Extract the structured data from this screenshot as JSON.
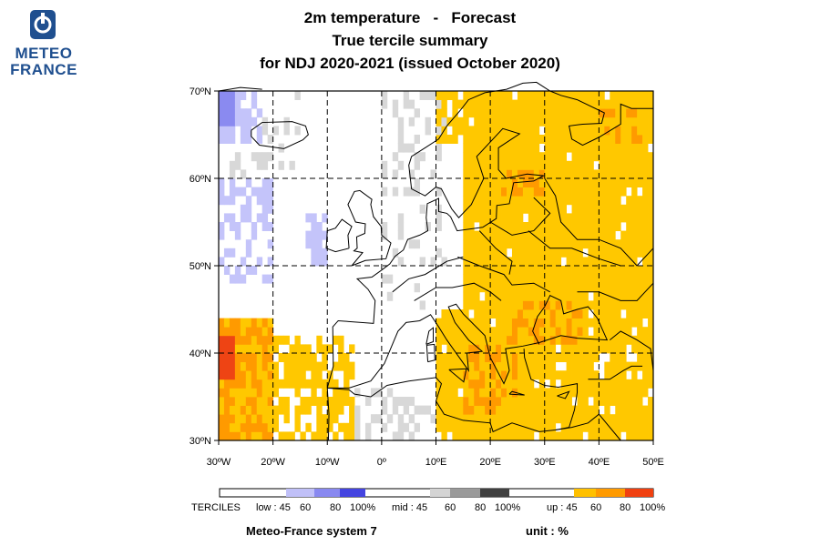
{
  "logo": {
    "line1": "METEO",
    "line2": "FRANCE"
  },
  "title": {
    "line1_a": "2m temperature",
    "line1_sep": "-",
    "line1_b": "Forecast",
    "line2": "True tercile summary",
    "line3": "for NDJ 2020-2021   (issued October 2020)"
  },
  "map": {
    "lon_range": [
      -30,
      50
    ],
    "lat_range": [
      30,
      70
    ],
    "grid_lines": "dashed",
    "lat_labels": [
      "70ºN",
      "60ºN",
      "50ºN",
      "40ºN",
      "30ºN"
    ],
    "lon_labels": [
      "30ºW",
      "20ºW",
      "10ºW",
      "0º",
      "10ºE",
      "20ºE",
      "30ºE",
      "40ºE",
      "50ºE"
    ]
  },
  "legend": {
    "label": "TERCILES",
    "low": {
      "label": "low : 45",
      "ticks": [
        "60",
        "80",
        "100%"
      ],
      "colors": [
        "#c0c0f8",
        "#8888f0",
        "#4444e0"
      ]
    },
    "mid": {
      "label": "mid : 45",
      "ticks": [
        "60",
        "80",
        "100%"
      ],
      "colors": [
        "#d4d4d4",
        "#9a9a9a",
        "#404040"
      ]
    },
    "up": {
      "label": "up : 45",
      "ticks": [
        "60",
        "80",
        "100%"
      ],
      "colors": [
        "#ffc000",
        "#ff9a00",
        "#f04010"
      ]
    }
  },
  "footer": {
    "system": "Meteo-France system 7",
    "unit": "unit : %"
  },
  "colors": {
    "up45": "#ffc800",
    "up60": "#ff9a00",
    "up80": "#ee4414",
    "low45": "#c4c4fa",
    "low60": "#8a8af0",
    "mid45": "#d8d8d8"
  }
}
